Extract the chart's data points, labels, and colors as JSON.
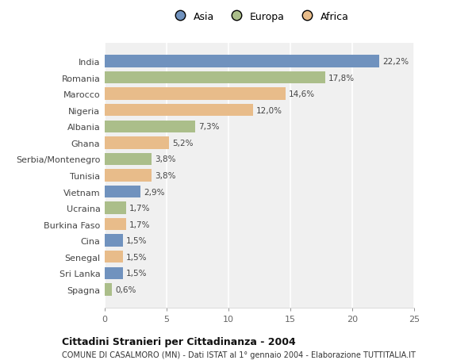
{
  "countries": [
    "India",
    "Romania",
    "Marocco",
    "Nigeria",
    "Albania",
    "Ghana",
    "Serbia/Montenegro",
    "Tunisia",
    "Vietnam",
    "Ucraina",
    "Burkina Faso",
    "Cina",
    "Senegal",
    "Sri Lanka",
    "Spagna"
  ],
  "values": [
    22.2,
    17.8,
    14.6,
    12.0,
    7.3,
    5.2,
    3.8,
    3.8,
    2.9,
    1.7,
    1.7,
    1.5,
    1.5,
    1.5,
    0.6
  ],
  "continents": [
    "Asia",
    "Europa",
    "Africa",
    "Africa",
    "Europa",
    "Africa",
    "Europa",
    "Africa",
    "Asia",
    "Europa",
    "Africa",
    "Asia",
    "Africa",
    "Asia",
    "Europa"
  ],
  "colors": {
    "Asia": "#7092be",
    "Europa": "#abbe8a",
    "Africa": "#e8bc8a"
  },
  "labels": [
    "22,2%",
    "17,8%",
    "14,6%",
    "12,0%",
    "7,3%",
    "5,2%",
    "3,8%",
    "3,8%",
    "2,9%",
    "1,7%",
    "1,7%",
    "1,5%",
    "1,5%",
    "1,5%",
    "0,6%"
  ],
  "xlim": [
    0,
    25
  ],
  "xticks": [
    0,
    5,
    10,
    15,
    20,
    25
  ],
  "title": "Cittadini Stranieri per Cittadinanza - 2004",
  "subtitle": "COMUNE DI CASALMORO (MN) - Dati ISTAT al 1° gennaio 2004 - Elaborazione TUTTITALIA.IT",
  "legend_labels": [
    "Asia",
    "Europa",
    "Africa"
  ],
  "bg_color": "#ffffff",
  "plot_bg_color": "#f0f0f0"
}
